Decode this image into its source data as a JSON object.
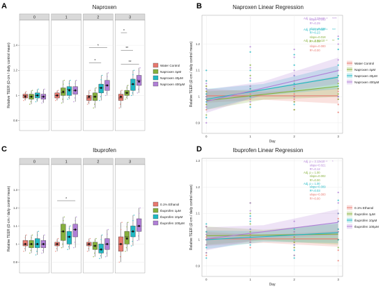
{
  "colors": {
    "red": "#e8796f",
    "green": "#86b03c",
    "cyan": "#1fb8c3",
    "purple": "#b07fd6",
    "grid": "#ececec",
    "strip": "#d9d9d9",
    "mean": "#111111"
  },
  "chart_data": [
    {
      "id": "A",
      "type": "box",
      "title": "Naproxen",
      "ylabel": "Relative TEER (Ω·cm / daily control mean)",
      "panels": [
        "0",
        "1",
        "2",
        "3"
      ],
      "ylim": [
        0.72,
        1.6
      ],
      "yticks": [
        0.8,
        1.0,
        1.2,
        1.4
      ],
      "legend_position": "right",
      "series": [
        {
          "name": "Water Control",
          "color": "red",
          "boxes": [
            [
              0.96,
              0.98,
              1.0,
              1.01,
              1.03,
              0.99
            ],
            [
              0.96,
              0.98,
              1.0,
              1.02,
              1.04,
              1.0
            ],
            [
              0.93,
              0.96,
              0.98,
              1.0,
              1.04,
              0.99
            ],
            [
              0.9,
              0.96,
              0.98,
              1.01,
              1.04,
              0.99
            ]
          ]
        },
        {
          "name": "Naproxen 4μM",
          "color": "green",
          "boxes": [
            [
              0.93,
              0.97,
              0.99,
              1.01,
              1.04,
              0.99
            ],
            [
              0.94,
              1.0,
              1.02,
              1.06,
              1.12,
              1.03
            ],
            [
              0.9,
              0.96,
              0.99,
              1.02,
              1.06,
              0.99
            ],
            [
              0.97,
              1.0,
              1.02,
              1.04,
              1.08,
              1.02
            ]
          ]
        },
        {
          "name": "Naproxen 40μM",
          "color": "cyan",
          "boxes": [
            [
              0.95,
              0.98,
              1.0,
              1.02,
              1.05,
              1.0
            ],
            [
              0.97,
              1.0,
              1.05,
              1.07,
              1.12,
              1.04
            ],
            [
              0.96,
              1.02,
              1.06,
              1.09,
              1.16,
              1.06
            ],
            [
              1.0,
              1.04,
              1.09,
              1.13,
              1.2,
              1.09
            ]
          ]
        },
        {
          "name": "Naproxen 400μM",
          "color": "purple",
          "boxes": [
            [
              0.94,
              0.97,
              0.99,
              1.01,
              1.05,
              0.99
            ],
            [
              0.95,
              1.01,
              1.04,
              1.07,
              1.12,
              1.04
            ],
            [
              1.0,
              1.04,
              1.08,
              1.12,
              1.18,
              1.08
            ],
            [
              1.02,
              1.08,
              1.12,
              1.16,
              1.22,
              1.11
            ]
          ]
        }
      ],
      "annotations": [
        {
          "panel": 2,
          "from": 0,
          "to": 3,
          "y": 1.38,
          "label": "*"
        },
        {
          "panel": 2,
          "from": 0,
          "to": 2,
          "y": 1.26,
          "label": "*"
        },
        {
          "panel": 3,
          "from": 0,
          "to": 1,
          "y": 1.5,
          "label": "*"
        },
        {
          "panel": 3,
          "from": 0,
          "to": 2,
          "y": 1.36,
          "label": "**"
        },
        {
          "panel": 3,
          "from": 0,
          "to": 3,
          "y": 1.25,
          "label": "**"
        }
      ]
    },
    {
      "id": "B",
      "type": "line",
      "title": "Naproxen Linear Regression",
      "xlabel": "Day",
      "ylabel": "Relative TEER (Ω·cm / daily control mean)",
      "xlim": [
        -0.1,
        3.1
      ],
      "ylim": [
        0.86,
        1.31
      ],
      "xticks": [
        0,
        1,
        2,
        3
      ],
      "yticks": [
        0.9,
        1.0,
        1.1,
        1.2
      ],
      "legend_position": "right",
      "series": [
        {
          "name": "Water Control",
          "color": "red",
          "intercept": 1.003,
          "slope": 0.0,
          "band": [
            0.015,
            0.03
          ]
        },
        {
          "name": "Naproxen 4μM",
          "color": "green",
          "intercept": 0.985,
          "slope": 0.018,
          "band": [
            0.02,
            0.04
          ]
        },
        {
          "name": "Naproxen 40μM",
          "color": "cyan",
          "intercept": 0.99,
          "slope": 0.028,
          "band": [
            0.022,
            0.045
          ]
        },
        {
          "name": "Naproxen 400μM",
          "color": "purple",
          "intercept": 0.982,
          "slope": 0.039,
          "band": [
            0.025,
            0.05
          ]
        }
      ],
      "points_y": {
        "red": [
          [
            0.95,
            0.97,
            0.99,
            1.0,
            1.01,
            1.02,
            1.04,
            1.06
          ],
          [
            0.97,
            0.99,
            1.0,
            1.01,
            1.02,
            1.03
          ],
          [
            0.95,
            0.98,
            0.99,
            1.0,
            1.01,
            1.03
          ],
          [
            0.94,
            0.97,
            0.99,
            1.0,
            1.02,
            1.03
          ]
        ],
        "green": [
          [
            0.93,
            0.97,
            0.99,
            1.0,
            1.02,
            1.04
          ],
          [
            0.97,
            1.0,
            1.02,
            1.04,
            1.08,
            1.12
          ],
          [
            0.95,
            0.98,
            1.0,
            1.03,
            1.06
          ],
          [
            0.99,
            1.01,
            1.03,
            1.05,
            1.08
          ]
        ],
        "cyan": [
          [
            0.92,
            0.98,
            1.0,
            1.01,
            1.03,
            1.06,
            1.1
          ],
          [
            0.96,
            1.0,
            1.03,
            1.06,
            1.1,
            1.17
          ],
          [
            0.97,
            1.02,
            1.05,
            1.08,
            1.12,
            1.16
          ],
          [
            1.0,
            1.04,
            1.08,
            1.12,
            1.18,
            1.22
          ]
        ],
        "purple": [
          [
            0.9,
            0.96,
            0.99,
            1.0,
            1.03,
            1.05
          ],
          [
            0.98,
            1.02,
            1.04,
            1.07,
            1.11,
            1.19
          ],
          [
            1.0,
            1.04,
            1.08,
            1.1,
            1.15,
            1.18
          ],
          [
            1.0,
            1.06,
            1.1,
            1.14,
            1.2,
            1.23
          ]
        ]
      },
      "text_annotations": [
        {
          "text": "slope=0.039",
          "color": "purple",
          "x": 2.35,
          "y": 1.29
        },
        {
          "text": "R²=0.29",
          "color": "purple",
          "x": 2.35,
          "y": 1.275
        },
        {
          "text": "slope=0.028",
          "color": "cyan",
          "x": 2.35,
          "y": 1.255
        },
        {
          "text": "R²=0.23",
          "color": "cyan",
          "x": 2.35,
          "y": 1.24
        },
        {
          "text": "slope=0.018",
          "color": "green",
          "x": 2.35,
          "y": 1.222
        },
        {
          "text": "R²=0.15",
          "color": "green",
          "x": 2.35,
          "y": 1.207
        },
        {
          "text": "slope=0.000",
          "color": "red",
          "x": 2.35,
          "y": 1.188
        },
        {
          "text": "R²=0.00",
          "color": "red",
          "x": 2.35,
          "y": 1.173
        },
        {
          "text": "Adj. p = 3.23x10⁻⁸",
          "color": "purple",
          "x": 3.2,
          "y": 1.29,
          "sig": "****"
        },
        {
          "text": "Adj. p = 1.87x10⁻⁵",
          "color": "cyan",
          "x": 3.2,
          "y": 1.255,
          "sig": "***"
        },
        {
          "text": "Adj. p = 2.66x10⁻³",
          "color": "green",
          "x": 3.2,
          "y": 1.222,
          "sig": "**"
        }
      ]
    },
    {
      "id": "C",
      "type": "box",
      "title": "Ibuprofen",
      "ylabel": "Relative TEER (Ω·cm / daily control mean)",
      "panels": [
        "0",
        "1",
        "2",
        "3"
      ],
      "ylim": [
        0.84,
        1.44
      ],
      "yticks": [
        0.9,
        1.0,
        1.1,
        1.2,
        1.3
      ],
      "legend_position": "right",
      "series": [
        {
          "name": "0.1% Ethanol",
          "color": "red",
          "boxes": [
            [
              0.96,
              0.99,
              1.0,
              1.02,
              1.05,
              1.0
            ],
            [
              0.96,
              0.99,
              1.0,
              1.01,
              1.03,
              1.0
            ],
            [
              0.96,
              0.99,
              1.0,
              1.01,
              1.03,
              1.0
            ],
            [
              0.9,
              0.96,
              1.0,
              1.04,
              1.12,
              1.0
            ]
          ]
        },
        {
          "name": "Ibuprofen 1μM",
          "color": "green",
          "boxes": [
            [
              0.95,
              0.98,
              1.0,
              1.02,
              1.05,
              1.0
            ],
            [
              0.98,
              1.02,
              1.07,
              1.11,
              1.15,
              1.07
            ],
            [
              0.93,
              0.97,
              0.99,
              1.01,
              1.03,
              0.99
            ],
            [
              0.96,
              1.0,
              1.04,
              1.07,
              1.12,
              1.03
            ]
          ]
        },
        {
          "name": "Ibuprofen 10μM",
          "color": "cyan",
          "boxes": [
            [
              0.94,
              0.98,
              1.0,
              1.03,
              1.07,
              1.0
            ],
            [
              0.97,
              1.0,
              1.04,
              1.07,
              1.1,
              1.04
            ],
            [
              0.92,
              0.95,
              0.97,
              1.0,
              1.05,
              0.97
            ],
            [
              0.99,
              1.04,
              1.07,
              1.1,
              1.16,
              1.07
            ]
          ]
        },
        {
          "name": "Ibuprofen 100μM",
          "color": "purple",
          "boxes": [
            [
              0.95,
              0.98,
              1.0,
              1.02,
              1.05,
              1.0
            ],
            [
              0.98,
              1.04,
              1.08,
              1.11,
              1.15,
              1.08
            ],
            [
              0.93,
              0.97,
              1.0,
              1.03,
              1.08,
              1.0
            ],
            [
              1.02,
              1.07,
              1.1,
              1.14,
              1.2,
              1.1
            ]
          ]
        }
      ],
      "annotations": [
        {
          "panel": 1,
          "from": 0,
          "to": 3,
          "y": 1.24,
          "label": "*"
        }
      ]
    },
    {
      "id": "D",
      "type": "line",
      "title": "Ibuprofen Linear Regression",
      "xlabel": "Day",
      "ylabel": "Relative TEER (Ω·cm / daily control mean)",
      "xlim": [
        -0.1,
        3.1
      ],
      "ylim": [
        0.86,
        1.31
      ],
      "xticks": [
        0,
        1,
        2,
        3
      ],
      "yticks": [
        0.9,
        1.0,
        1.1,
        1.2,
        1.3
      ],
      "legend_position": "right",
      "series": [
        {
          "name": "0.1% Ethanol",
          "color": "red",
          "intercept": 1.003,
          "slope": 0.0,
          "band": [
            0.015,
            0.03
          ]
        },
        {
          "name": "Ibuprofen 1μM",
          "color": "green",
          "intercept": 1.015,
          "slope": 0.002,
          "band": [
            0.02,
            0.04
          ]
        },
        {
          "name": "Ibuprofen 10μM",
          "color": "cyan",
          "intercept": 1.0,
          "slope": 0.009,
          "band": [
            0.02,
            0.04
          ]
        },
        {
          "name": "Ibuprofen 100μM",
          "color": "purple",
          "intercept": 1.003,
          "slope": 0.021,
          "band": [
            0.025,
            0.05
          ]
        }
      ],
      "points_y": {
        "red": [
          [
            0.94,
            0.98,
            1.0,
            1.01,
            1.03,
            1.05
          ],
          [
            0.97,
            0.99,
            1.0,
            1.01,
            1.02
          ],
          [
            0.97,
            0.99,
            1.0,
            1.01,
            1.02
          ],
          [
            0.92,
            0.96,
            1.0,
            1.04,
            1.08
          ]
        ],
        "green": [
          [
            0.95,
            0.98,
            1.0,
            1.02,
            1.05
          ],
          [
            0.99,
            1.03,
            1.06,
            1.1,
            1.14
          ],
          [
            0.94,
            0.97,
            0.99,
            1.01,
            1.03
          ],
          [
            0.97,
            1.0,
            1.03,
            1.07,
            1.1
          ]
        ],
        "cyan": [
          [
            0.93,
            0.97,
            1.0,
            1.03,
            1.06
          ],
          [
            0.98,
            1.01,
            1.04,
            1.07,
            1.09
          ],
          [
            0.93,
            0.96,
            0.98,
            1.0,
            1.04
          ],
          [
            1.0,
            1.04,
            1.07,
            1.1,
            1.15
          ]
        ],
        "purple": [
          [
            0.95,
            0.98,
            1.0,
            1.02,
            1.05
          ],
          [
            0.99,
            1.04,
            1.08,
            1.11,
            1.14
          ],
          [
            0.94,
            0.98,
            1.0,
            1.03,
            1.07
          ],
          [
            1.03,
            1.07,
            1.1,
            1.14,
            1.18
          ]
        ]
      },
      "text_annotations": [
        {
          "text": "slope=0.021",
          "color": "purple",
          "x": 2.35,
          "y": 1.28
        },
        {
          "text": "R²=0.12",
          "color": "purple",
          "x": 2.35,
          "y": 1.265
        },
        {
          "text": "slope=0.002",
          "color": "green",
          "x": 2.35,
          "y": 1.238
        },
        {
          "text": "R²=0.00",
          "color": "green",
          "x": 2.35,
          "y": 1.223
        },
        {
          "text": "slope=0.009",
          "color": "cyan",
          "x": 2.35,
          "y": 1.198
        },
        {
          "text": "R²=0.03",
          "color": "cyan",
          "x": 2.35,
          "y": 1.183
        },
        {
          "text": "slope=0.000",
          "color": "red",
          "x": 2.35,
          "y": 1.168
        },
        {
          "text": "R²=0.00",
          "color": "red",
          "x": 2.35,
          "y": 1.153
        },
        {
          "text": "Adj. p = 2.13x10⁻²",
          "color": "purple",
          "x": 3.2,
          "y": 1.28,
          "sig": "*"
        },
        {
          "text": "Adj. p = 1.00",
          "color": "green",
          "x": 3.2,
          "y": 1.238,
          "sig": ""
        },
        {
          "text": "Adj. p = 1.00",
          "color": "cyan",
          "x": 3.2,
          "y": 1.198,
          "sig": ""
        }
      ]
    }
  ]
}
